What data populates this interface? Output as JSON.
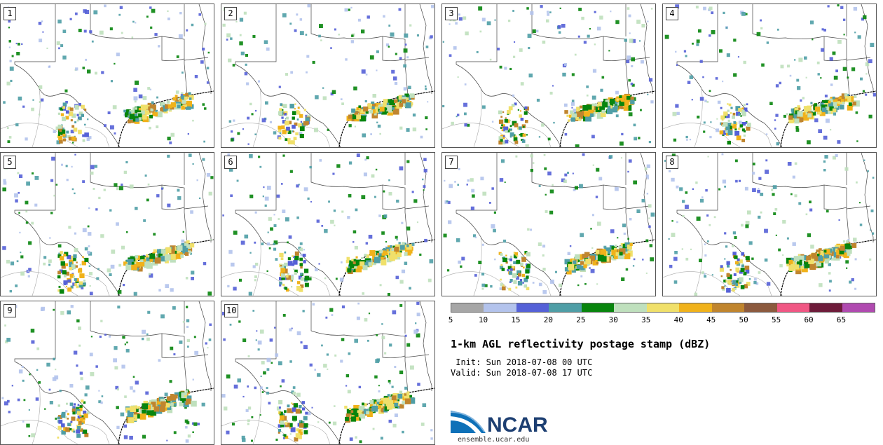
{
  "panels": [
    {
      "label": "1"
    },
    {
      "label": "2"
    },
    {
      "label": "3"
    },
    {
      "label": "4"
    },
    {
      "label": "5"
    },
    {
      "label": "6"
    },
    {
      "label": "7"
    },
    {
      "label": "8"
    },
    {
      "label": "9"
    },
    {
      "label": "10"
    }
  ],
  "colorbar": {
    "colors": [
      "#a6a6a6",
      "#b3c3ec",
      "#5561d7",
      "#4f9ea6",
      "#08850d",
      "#bfe0bd",
      "#f0e06a",
      "#f0b21b",
      "#c0852e",
      "#8c5a3e",
      "#f05784",
      "#6e1b3a",
      "#b04ab0"
    ],
    "ticks": [
      "5",
      "10",
      "15",
      "20",
      "25",
      "30",
      "35",
      "40",
      "45",
      "50",
      "55",
      "60",
      "65"
    ]
  },
  "title": "1-km AGL reflectivity postage stamp (dBZ)",
  "init_line": " Init: Sun 2018-07-08 00 UTC",
  "valid_line": "Valid: Sun 2018-07-08 17 UTC",
  "logo": {
    "text": "NCAR",
    "url": "ensemble.ucar.edu",
    "brand_color": "#0e71b8"
  }
}
